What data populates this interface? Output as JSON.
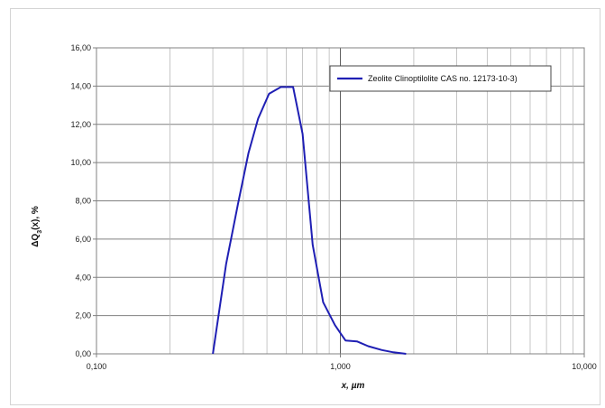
{
  "chart_data": {
    "type": "line",
    "title": "",
    "xlabel": "x, µm",
    "ylabel": "ΔQ3(x), %",
    "x_scale": "log",
    "xlim": [
      0.1,
      10
    ],
    "ylim": [
      0,
      16
    ],
    "x_ticks": [
      "0,100",
      "1,000",
      "10,000"
    ],
    "y_ticks": [
      "0,00",
      "2,00",
      "4,00",
      "6,00",
      "8,00",
      "10,00",
      "12,00",
      "14,00",
      "16,00"
    ],
    "grid": true,
    "legend_position": "top-right",
    "series": [
      {
        "name": "Zeolite Clinoptilolite CAS no. 12173-10-3)",
        "color": "#1f1fb4",
        "x": [
          0.3,
          0.34,
          0.38,
          0.42,
          0.46,
          0.51,
          0.57,
          0.64,
          0.7,
          0.77,
          0.85,
          0.95,
          1.05,
          1.17,
          1.3,
          1.48,
          1.65,
          1.86
        ],
        "y": [
          0.0,
          4.7,
          7.8,
          10.5,
          12.3,
          13.6,
          13.95,
          13.95,
          11.5,
          5.7,
          2.7,
          1.5,
          0.7,
          0.65,
          0.4,
          0.2,
          0.08,
          0.0
        ]
      }
    ]
  }
}
